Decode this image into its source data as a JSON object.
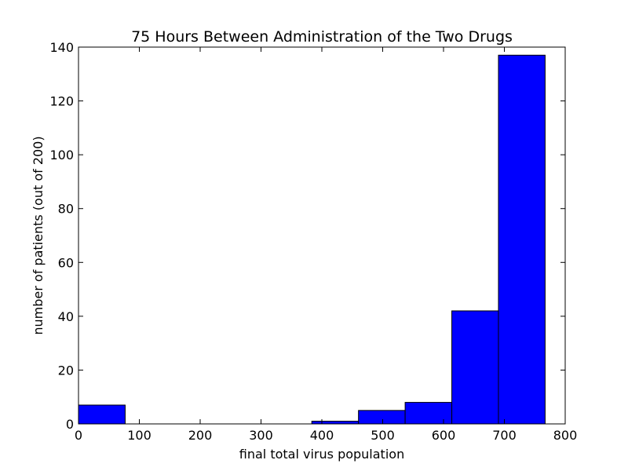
{
  "chart_data": {
    "type": "bar",
    "title": "75 Hours Between Administration of the Two Drugs",
    "xlabel": "final total virus population",
    "ylabel": "number of patients (out of 200)",
    "xlim": [
      0,
      800
    ],
    "ylim": [
      0,
      140
    ],
    "xticks": [
      0,
      100,
      200,
      300,
      400,
      500,
      600,
      700,
      800
    ],
    "yticks": [
      0,
      20,
      40,
      60,
      80,
      100,
      120,
      140
    ],
    "bin_width": 76.7,
    "bins": [
      {
        "start": 0,
        "value": 7
      },
      {
        "start": 76.7,
        "value": 0
      },
      {
        "start": 153.4,
        "value": 0
      },
      {
        "start": 230.1,
        "value": 0
      },
      {
        "start": 306.8,
        "value": 0
      },
      {
        "start": 383.5,
        "value": 1
      },
      {
        "start": 460.2,
        "value": 5
      },
      {
        "start": 536.9,
        "value": 8
      },
      {
        "start": 613.6,
        "value": 42
      },
      {
        "start": 690.3,
        "value": 137
      }
    ],
    "bar_color": "#0000ff",
    "edge_color": "#000000",
    "grid": false
  }
}
